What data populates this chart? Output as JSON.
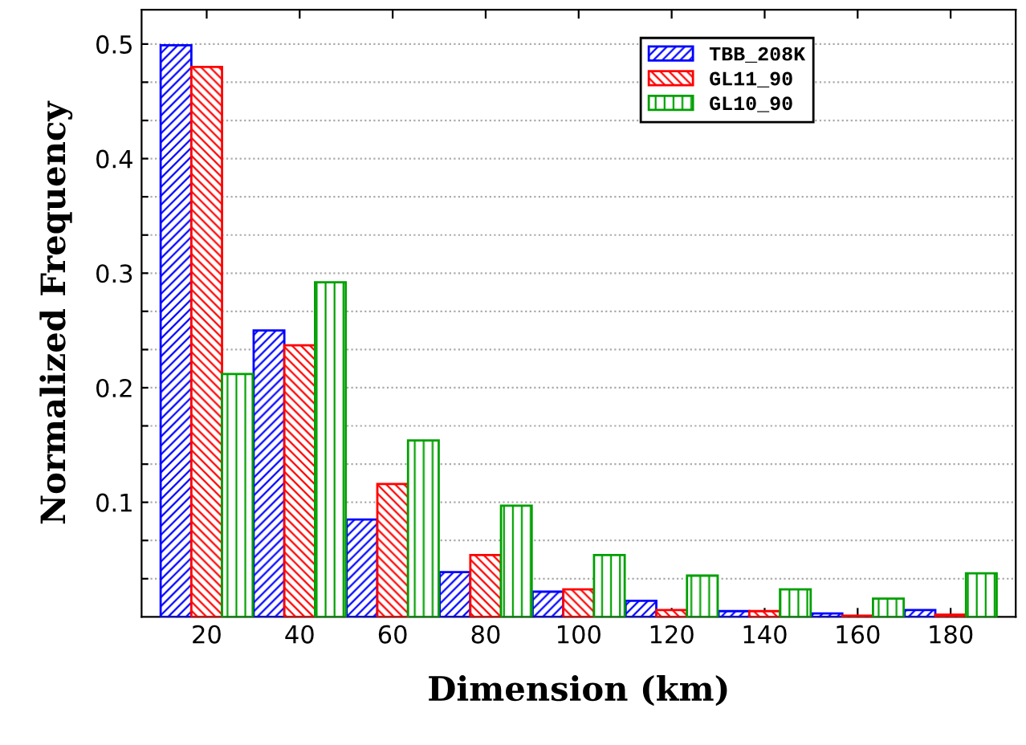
{
  "chart_data": {
    "type": "bar",
    "xlabel": "Dimension (km)",
    "ylabel": "Normalized Frequency",
    "categories": [
      "20",
      "40",
      "60",
      "80",
      "100",
      "120",
      "140",
      "160",
      "180"
    ],
    "series": [
      {
        "name": "TBB_208K",
        "color": "#0000ff",
        "values": [
          0.499,
          0.25,
          0.085,
          0.039,
          0.022,
          0.014,
          0.005,
          0.003,
          0.006
        ]
      },
      {
        "name": "GL11_90",
        "color": "#ff0000",
        "values": [
          0.48,
          0.237,
          0.116,
          0.054,
          0.024,
          0.006,
          0.005,
          0.001,
          0.002
        ]
      },
      {
        "name": "GL10_90",
        "color": "#00a000",
        "values": [
          0.212,
          0.292,
          0.154,
          0.097,
          0.054,
          0.036,
          0.024,
          0.016,
          0.038
        ]
      }
    ],
    "ylim": [
      0,
      0.53
    ],
    "yticks": [
      {
        "value": 0.0333,
        "label": null
      },
      {
        "value": 0.0667,
        "label": null
      },
      0.1,
      {
        "value": 0.1333,
        "label": null
      },
      {
        "value": 0.1667,
        "label": null
      },
      0.2,
      {
        "value": 0.2333,
        "label": null
      },
      {
        "value": 0.2667,
        "label": null
      },
      0.3,
      {
        "value": 0.3333,
        "label": null
      },
      {
        "value": 0.3667,
        "label": null
      },
      0.4,
      {
        "value": 0.4333,
        "label": null
      },
      {
        "value": 0.4667,
        "label": null
      },
      0.5
    ],
    "grid": "y",
    "legend": "top right"
  }
}
